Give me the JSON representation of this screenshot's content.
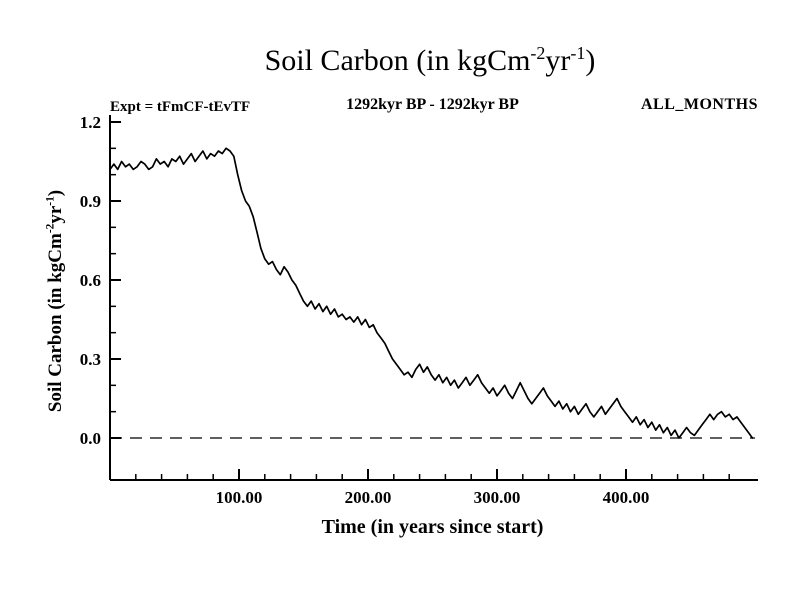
{
  "title": {
    "prefix": "Soil Carbon (in kgCm",
    "sup1": "-2",
    "mid": "yr",
    "sup2": "-1",
    "suffix": ")"
  },
  "header": {
    "expt": "Expt = tFmCF-tEvTF",
    "range": "1292kyr BP - 1292kyr BP",
    "months": "ALL_MONTHS"
  },
  "axes": {
    "x_label": "Time (in years since start)",
    "y_label": {
      "prefix": "Soil Carbon (in kgCm",
      "sup1": "-2",
      "mid": "yr",
      "sup2": "-1",
      "suffix": ")"
    },
    "x_ticks": [
      "100.00",
      "200.00",
      "300.00",
      "400.00"
    ],
    "x_tick_values": [
      100,
      200,
      300,
      400
    ],
    "y_ticks": [
      "0.0",
      "0.3",
      "0.6",
      "0.9",
      "1.2"
    ],
    "y_tick_values": [
      0,
      0.3,
      0.6,
      0.9,
      1.2
    ],
    "x_range": [
      0,
      500
    ],
    "y_range": [
      0,
      1.2
    ]
  },
  "colors": {
    "line": "#000000",
    "axis": "#000000",
    "background": "#ffffff",
    "zero_line": "#000000"
  },
  "chart_data": {
    "type": "line",
    "title": "Soil Carbon (in kgCm-2yr-1)",
    "subtitle_left": "Expt = tFmCF-tEvTF",
    "subtitle_center": "1292kyr BP - 1292kyr BP",
    "subtitle_right": "ALL_MONTHS",
    "xlabel": "Time (in years since start)",
    "ylabel": "Soil Carbon (in kgCm-2yr-1)",
    "xlim": [
      0,
      500
    ],
    "ylim": [
      0,
      1.2
    ],
    "grid": false,
    "legend": "none",
    "zero_reference_line": 0.0,
    "points": [
      [
        0,
        1.02
      ],
      [
        3,
        1.04
      ],
      [
        6,
        1.02
      ],
      [
        9,
        1.05
      ],
      [
        12,
        1.03
      ],
      [
        15,
        1.04
      ],
      [
        18,
        1.02
      ],
      [
        21,
        1.03
      ],
      [
        24,
        1.05
      ],
      [
        27,
        1.04
      ],
      [
        30,
        1.02
      ],
      [
        33,
        1.03
      ],
      [
        36,
        1.06
      ],
      [
        39,
        1.04
      ],
      [
        42,
        1.05
      ],
      [
        45,
        1.03
      ],
      [
        48,
        1.06
      ],
      [
        51,
        1.05
      ],
      [
        54,
        1.07
      ],
      [
        57,
        1.04
      ],
      [
        60,
        1.06
      ],
      [
        63,
        1.08
      ],
      [
        66,
        1.05
      ],
      [
        69,
        1.07
      ],
      [
        72,
        1.09
      ],
      [
        75,
        1.06
      ],
      [
        78,
        1.08
      ],
      [
        81,
        1.07
      ],
      [
        84,
        1.09
      ],
      [
        87,
        1.08
      ],
      [
        90,
        1.1
      ],
      [
        93,
        1.09
      ],
      [
        96,
        1.07
      ],
      [
        99,
        1.0
      ],
      [
        102,
        0.94
      ],
      [
        105,
        0.9
      ],
      [
        108,
        0.88
      ],
      [
        111,
        0.84
      ],
      [
        114,
        0.78
      ],
      [
        117,
        0.72
      ],
      [
        120,
        0.68
      ],
      [
        123,
        0.66
      ],
      [
        126,
        0.67
      ],
      [
        129,
        0.64
      ],
      [
        132,
        0.62
      ],
      [
        135,
        0.65
      ],
      [
        138,
        0.63
      ],
      [
        141,
        0.6
      ],
      [
        144,
        0.58
      ],
      [
        147,
        0.55
      ],
      [
        150,
        0.52
      ],
      [
        153,
        0.5
      ],
      [
        156,
        0.52
      ],
      [
        159,
        0.49
      ],
      [
        162,
        0.51
      ],
      [
        165,
        0.48
      ],
      [
        168,
        0.5
      ],
      [
        171,
        0.47
      ],
      [
        174,
        0.49
      ],
      [
        177,
        0.46
      ],
      [
        180,
        0.47
      ],
      [
        183,
        0.45
      ],
      [
        186,
        0.46
      ],
      [
        189,
        0.44
      ],
      [
        192,
        0.46
      ],
      [
        195,
        0.43
      ],
      [
        198,
        0.45
      ],
      [
        201,
        0.42
      ],
      [
        204,
        0.43
      ],
      [
        207,
        0.4
      ],
      [
        210,
        0.38
      ],
      [
        213,
        0.36
      ],
      [
        216,
        0.33
      ],
      [
        219,
        0.3
      ],
      [
        222,
        0.28
      ],
      [
        225,
        0.26
      ],
      [
        228,
        0.24
      ],
      [
        231,
        0.25
      ],
      [
        234,
        0.23
      ],
      [
        237,
        0.26
      ],
      [
        240,
        0.28
      ],
      [
        243,
        0.25
      ],
      [
        246,
        0.27
      ],
      [
        249,
        0.24
      ],
      [
        252,
        0.22
      ],
      [
        255,
        0.24
      ],
      [
        258,
        0.21
      ],
      [
        261,
        0.23
      ],
      [
        264,
        0.2
      ],
      [
        267,
        0.22
      ],
      [
        270,
        0.19
      ],
      [
        273,
        0.21
      ],
      [
        276,
        0.23
      ],
      [
        279,
        0.2
      ],
      [
        282,
        0.22
      ],
      [
        285,
        0.24
      ],
      [
        288,
        0.21
      ],
      [
        291,
        0.19
      ],
      [
        294,
        0.17
      ],
      [
        297,
        0.19
      ],
      [
        300,
        0.16
      ],
      [
        303,
        0.18
      ],
      [
        306,
        0.2
      ],
      [
        309,
        0.17
      ],
      [
        312,
        0.15
      ],
      [
        315,
        0.18
      ],
      [
        318,
        0.21
      ],
      [
        321,
        0.18
      ],
      [
        324,
        0.15
      ],
      [
        327,
        0.13
      ],
      [
        330,
        0.15
      ],
      [
        333,
        0.17
      ],
      [
        336,
        0.19
      ],
      [
        339,
        0.16
      ],
      [
        342,
        0.14
      ],
      [
        345,
        0.12
      ],
      [
        348,
        0.14
      ],
      [
        351,
        0.11
      ],
      [
        354,
        0.13
      ],
      [
        357,
        0.1
      ],
      [
        360,
        0.12
      ],
      [
        363,
        0.09
      ],
      [
        366,
        0.11
      ],
      [
        369,
        0.13
      ],
      [
        372,
        0.1
      ],
      [
        375,
        0.08
      ],
      [
        378,
        0.1
      ],
      [
        381,
        0.12
      ],
      [
        384,
        0.09
      ],
      [
        387,
        0.11
      ],
      [
        390,
        0.13
      ],
      [
        393,
        0.15
      ],
      [
        396,
        0.12
      ],
      [
        399,
        0.1
      ],
      [
        402,
        0.08
      ],
      [
        405,
        0.06
      ],
      [
        408,
        0.08
      ],
      [
        411,
        0.05
      ],
      [
        414,
        0.07
      ],
      [
        417,
        0.04
      ],
      [
        420,
        0.06
      ],
      [
        423,
        0.03
      ],
      [
        426,
        0.05
      ],
      [
        429,
        0.02
      ],
      [
        432,
        0.04
      ],
      [
        435,
        0.01
      ],
      [
        438,
        0.03
      ],
      [
        441,
        0.0
      ],
      [
        444,
        0.02
      ],
      [
        447,
        0.04
      ],
      [
        450,
        0.02
      ],
      [
        453,
        0.01
      ],
      [
        456,
        0.03
      ],
      [
        459,
        0.05
      ],
      [
        462,
        0.07
      ],
      [
        465,
        0.09
      ],
      [
        468,
        0.07
      ],
      [
        471,
        0.09
      ],
      [
        474,
        0.1
      ],
      [
        477,
        0.08
      ],
      [
        480,
        0.09
      ],
      [
        483,
        0.07
      ],
      [
        486,
        0.08
      ],
      [
        489,
        0.06
      ],
      [
        492,
        0.04
      ],
      [
        495,
        0.02
      ],
      [
        498,
        0.0
      ]
    ]
  }
}
